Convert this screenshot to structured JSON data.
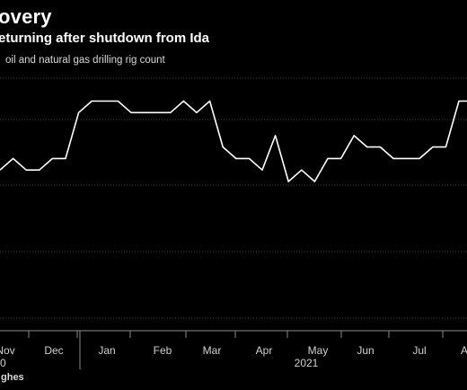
{
  "header": {
    "title": "overy",
    "subtitle": "eturning after shutdown from Ida",
    "caption": "oil and natural gas drilling rig count",
    "source": "ghes"
  },
  "chart_data": {
    "type": "line",
    "title": "overy",
    "subtitle": "eturning after shutdown from Ida",
    "ylabel": "oil and natural gas drilling rig count",
    "xlabel": "",
    "x_tick_labels": [
      "Nov",
      "Dec",
      "Jan",
      "Feb",
      "Mar",
      "Apr",
      "May",
      "Jun",
      "Jul",
      "A"
    ],
    "x_group_labels": [
      "0",
      "2021"
    ],
    "grid": "horizontal",
    "line_color": "#ffffff",
    "background": "#000000",
    "x": [
      "Oct 22",
      "Oct 29",
      "Nov 5",
      "Nov 12",
      "Nov 19",
      "Nov 26",
      "Dec 3",
      "Dec 10",
      "Dec 17",
      "Dec 24",
      "Dec 31",
      "Jan 7",
      "Jan 14",
      "Jan 21",
      "Jan 28",
      "Feb 4",
      "Feb 11",
      "Feb 18",
      "Feb 25",
      "Mar 4",
      "Mar 11",
      "Mar 18",
      "Mar 25",
      "Apr 1",
      "Apr 8",
      "Apr 15",
      "Apr 22",
      "Apr 29",
      "May 6",
      "May 13",
      "May 20",
      "May 27",
      "Jun 3",
      "Jun 10",
      "Jun 17",
      "Jun 24",
      "Jul 1",
      "Jul 8",
      "Jul 15",
      "Jul 22",
      "Jul 29",
      "Aug 5",
      "Aug 12",
      "Aug 19"
    ],
    "series": [
      {
        "values": [
          10,
          11,
          10,
          10,
          11,
          11,
          15,
          16,
          16,
          16,
          15,
          15,
          15,
          15,
          16,
          15,
          16,
          12,
          11,
          11,
          10,
          13,
          9,
          10,
          9,
          11,
          11,
          13,
          12,
          12,
          11,
          11,
          11,
          12,
          12,
          16,
          16,
          16,
          13,
          12,
          12,
          11,
          11,
          11
        ]
      }
    ],
    "ylim": [
      -4,
      18
    ]
  }
}
